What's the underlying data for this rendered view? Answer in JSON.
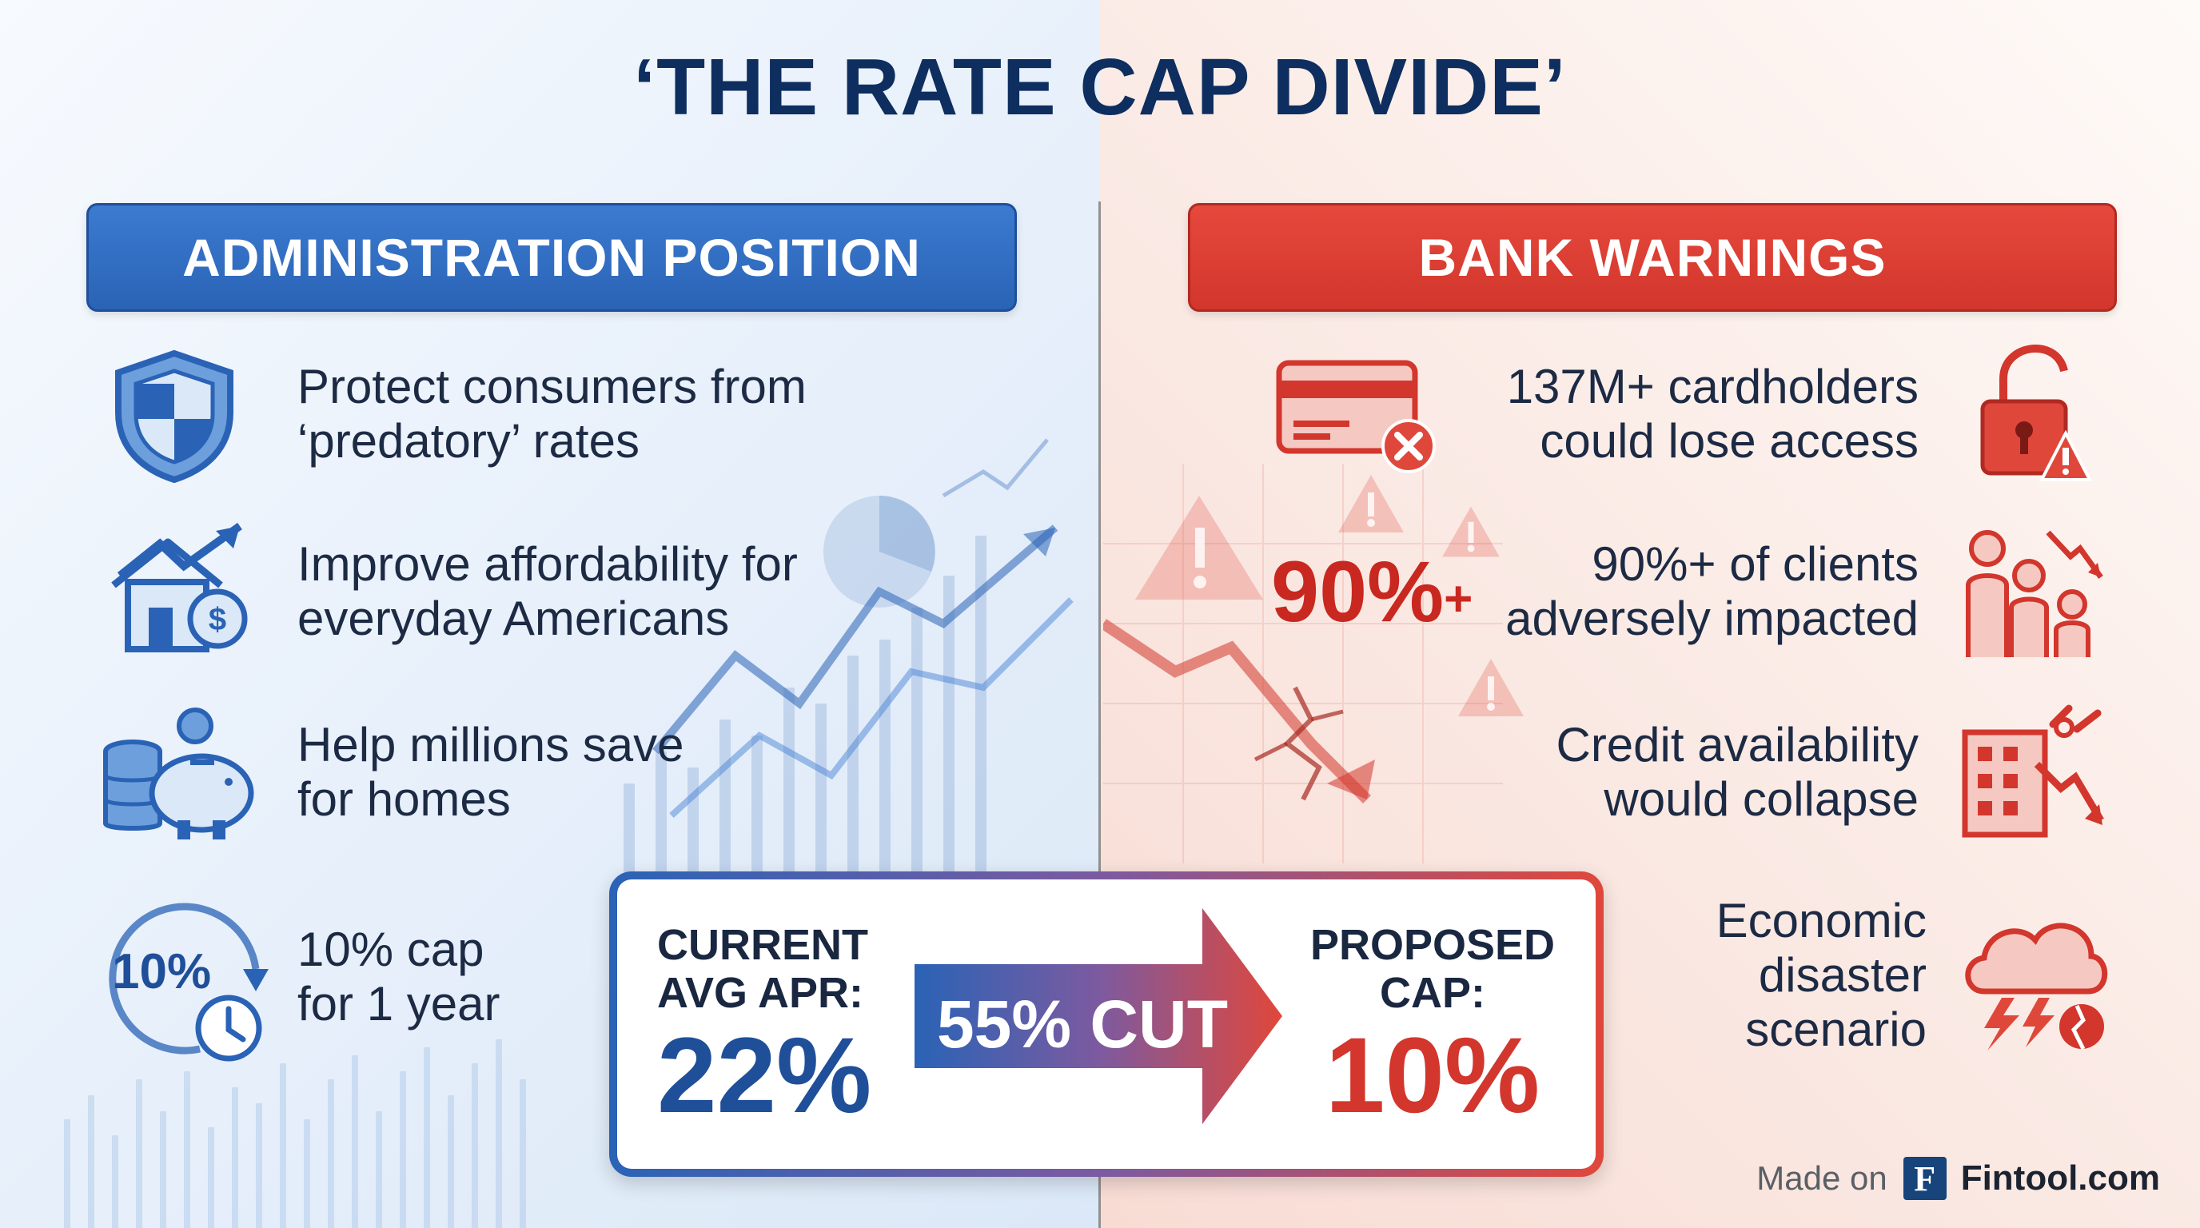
{
  "title": "‘THE RATE CAP DIVIDE’",
  "left": {
    "header": "ADMINISTRATION POSITION",
    "items": [
      {
        "line1": "Protect consumers from",
        "line2": "‘predatory’ rates",
        "icon": "shield-icon"
      },
      {
        "line1": "Improve affordability for",
        "line2": "everyday Americans",
        "icon": "house-growth-icon"
      },
      {
        "line1": "Help millions save",
        "line2": "for homes",
        "icon": "piggy-bank-icon"
      },
      {
        "line1": "10% cap",
        "line2": "for 1 year",
        "icon": "clock-cap-icon",
        "badge": "10%"
      }
    ]
  },
  "right": {
    "header": "BANK WARNINGS",
    "big_stat": "90%",
    "big_stat_suffix": "+",
    "items": [
      {
        "line1": "137M+ cardholders",
        "line2": "could lose access",
        "icon": "credit-card-declined-icon"
      },
      {
        "line1": "90%+ of clients",
        "line2": "adversely impacted",
        "icon": "people-decline-icon"
      },
      {
        "line1": "Credit availability",
        "line2": "would collapse",
        "icon": "broken-bank-icon"
      },
      {
        "line1": "Economic",
        "line2": "disaster",
        "line3": "scenario",
        "icon": "storm-cloud-icon"
      }
    ]
  },
  "comparison": {
    "current_label_1": "CURRENT",
    "current_label_2": "AVG APR:",
    "current_value": "22%",
    "arrow_text": "55% CUT",
    "proposed_label_1": "PROPOSED",
    "proposed_label_2": "CAP:",
    "proposed_value": "10%"
  },
  "footer": {
    "made_on": "Made on",
    "logo_letter": "F",
    "brand": "Fintool.com"
  },
  "colors": {
    "navy": "#0d2e5e",
    "blue": "#2a63b6",
    "red": "#d2362c"
  }
}
